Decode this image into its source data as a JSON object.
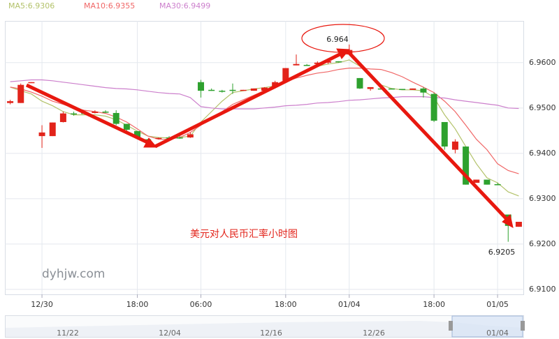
{
  "chart_data": {
    "type": "candlestick",
    "subtitle": "美元对人民币汇率小时图",
    "watermark": "dyhjw.com",
    "high_label": "6.964",
    "low_label": "6.9205",
    "categories": [
      null,
      null,
      null,
      "12/30",
      null,
      null,
      null,
      null,
      null,
      null,
      null,
      null,
      "18:00",
      null,
      null,
      null,
      null,
      null,
      "06:00",
      null,
      null,
      null,
      null,
      null,
      null,
      null,
      "18:00",
      null,
      null,
      null,
      null,
      null,
      "01/04",
      null,
      null,
      null,
      null,
      null,
      null,
      null,
      "18:00",
      null,
      null,
      null,
      null,
      null,
      "01/05",
      null,
      null
    ],
    "open": [
      6.9511,
      6.9511,
      6.9555,
      6.9438,
      6.9438,
      6.9469,
      6.9488,
      6.9489,
      6.9489,
      6.9492,
      6.9489,
      6.9465,
      6.9449,
      6.9431,
      6.9432,
      6.9435,
      6.9435,
      6.9435,
      6.9557,
      6.954,
      6.9538,
      6.954,
      6.9538,
      6.9538,
      6.9538,
      6.9546,
      6.956,
      6.9594,
      6.9595,
      6.9597,
      6.96,
      6.9603,
      6.9618,
      6.9566,
      6.9542,
      6.9543,
      6.9543,
      6.9542,
      6.954,
      6.9543,
      6.9531,
      6.9469,
      6.9408,
      6.9415,
      6.9335,
      6.9342,
      6.9332,
      6.9265,
      6.9238
    ],
    "high": [
      6.9518,
      6.9554,
      6.9557,
      6.9462,
      6.9468,
      6.9492,
      6.9492,
      6.9492,
      6.9495,
      6.9495,
      6.9495,
      6.9465,
      6.9449,
      6.9432,
      6.9435,
      6.9438,
      6.9438,
      6.9446,
      6.9562,
      6.9543,
      6.954,
      6.9554,
      6.954,
      6.9543,
      6.9546,
      6.956,
      6.9588,
      6.9618,
      6.9597,
      6.9603,
      6.9603,
      6.9603,
      6.964,
      6.9566,
      6.9546,
      6.9546,
      6.9543,
      6.9542,
      6.9543,
      6.9546,
      6.9534,
      6.9469,
      6.9431,
      6.9415,
      6.9342,
      6.9342,
      6.9335,
      6.9265,
      6.9249
    ],
    "low": [
      6.9508,
      6.9511,
      6.9555,
      6.9412,
      6.9438,
      6.9468,
      6.9483,
      6.9488,
      6.9488,
      6.9489,
      6.9462,
      6.9449,
      6.9431,
      6.9426,
      6.9431,
      6.9434,
      6.9432,
      6.9434,
      6.9523,
      6.9538,
      6.9534,
      6.9531,
      6.9538,
      6.9538,
      6.9538,
      6.9543,
      6.9557,
      6.9594,
      6.9594,
      6.9595,
      6.9597,
      6.96,
      6.9618,
      6.9542,
      6.9538,
      6.9542,
      6.9542,
      6.954,
      6.954,
      6.9523,
      6.9469,
      6.9408,
      6.94,
      6.9331,
      6.9335,
      6.9331,
      6.9331,
      6.9205,
      6.9238
    ],
    "close": [
      6.9515,
      6.9551,
      6.9557,
      6.9446,
      6.9468,
      6.9488,
      6.9488,
      6.9489,
      6.9492,
      6.9491,
      6.9465,
      6.9452,
      6.9435,
      6.9431,
      6.9434,
      6.9435,
      6.9435,
      6.9442,
      6.9538,
      6.954,
      6.9538,
      6.9538,
      6.954,
      6.9543,
      6.9545,
      6.9557,
      6.9588,
      6.9597,
      6.9595,
      6.96,
      6.9603,
      6.9603,
      6.9628,
      6.9543,
      6.9546,
      6.9543,
      6.9542,
      6.954,
      6.9543,
      6.9534,
      6.9472,
      6.9415,
      6.9426,
      6.9331,
      6.9342,
      6.9331,
      6.9332,
      6.924,
      6.9249
    ],
    "up_color": "#e2231a",
    "down_color": "#2ea12e",
    "series": [
      {
        "name": "MA5:6.9306",
        "color": "#b3c26a",
        "values": [
          6.9546,
          6.9538,
          6.9531,
          6.9515,
          6.9505,
          6.9492,
          6.9485,
          6.9485,
          6.9485,
          6.9482,
          6.9474,
          6.9462,
          6.9449,
          6.9438,
          6.9435,
          6.9434,
          6.9435,
          6.9438,
          6.9469,
          6.9492,
          6.9515,
          6.9534,
          6.9538,
          6.9542,
          6.9545,
          6.9549,
          6.9558,
          6.9572,
          6.9585,
          6.9592,
          6.9597,
          6.96,
          6.9606,
          6.9592,
          6.9569,
          6.9551,
          6.9543,
          6.954,
          6.954,
          6.9538,
          6.9523,
          6.9485,
          6.9454,
          6.9415,
          6.9377,
          6.9346,
          6.9335,
          6.9315,
          6.9306
        ]
      },
      {
        "name": "MA10:6.9355",
        "color": "#f06666",
        "values": [
          6.9546,
          6.9542,
          6.9535,
          6.9526,
          6.9515,
          6.9508,
          6.95,
          6.9495,
          6.9492,
          6.9488,
          6.948,
          6.9469,
          6.9454,
          6.9438,
          6.9431,
          6.9431,
          6.9435,
          6.9446,
          6.9462,
          6.9477,
          6.9492,
          6.9508,
          6.9518,
          6.9528,
          6.9538,
          6.9549,
          6.9558,
          6.9566,
          6.9572,
          6.9577,
          6.958,
          6.9585,
          6.9588,
          6.9588,
          6.9586,
          6.9585,
          6.9578,
          6.9569,
          6.9557,
          6.9546,
          6.9534,
          6.9515,
          6.9492,
          6.9462,
          6.9431,
          6.9408,
          6.9377,
          6.9362,
          6.9355
        ]
      },
      {
        "name": "MA30:6.9499",
        "color": "#cc7fcc",
        "values": [
          6.9558,
          6.956,
          6.9562,
          6.9562,
          6.956,
          6.9557,
          6.9554,
          6.9551,
          6.9548,
          6.9545,
          6.9543,
          6.9542,
          6.954,
          6.9537,
          6.9534,
          6.9532,
          6.9531,
          6.9523,
          6.9503,
          6.95,
          6.9498,
          6.9498,
          6.9498,
          6.9498,
          6.95,
          6.9502,
          6.9505,
          6.9506,
          6.9508,
          6.9511,
          6.9512,
          6.9514,
          6.9517,
          6.9518,
          6.952,
          6.9522,
          6.9523,
          6.9525,
          6.9525,
          6.9525,
          6.9523,
          6.9522,
          6.9518,
          6.9515,
          6.9512,
          6.9509,
          6.9506,
          6.95,
          6.9499
        ]
      }
    ],
    "ylim": [
      6.9089,
      6.9692
    ],
    "yticks": [
      {
        "value": 6.91,
        "label": "6.9100"
      },
      {
        "value": 6.92,
        "label": "6.9200"
      },
      {
        "value": 6.93,
        "label": "6.9300"
      },
      {
        "value": 6.94,
        "label": "6.9400"
      },
      {
        "value": 6.95,
        "label": "6.9500"
      },
      {
        "value": 6.96,
        "label": "6.9600"
      }
    ],
    "grid": true,
    "navigator": {
      "labels": [
        "11/22",
        "12/04",
        "12/16",
        "12/26",
        "01/04"
      ]
    }
  }
}
